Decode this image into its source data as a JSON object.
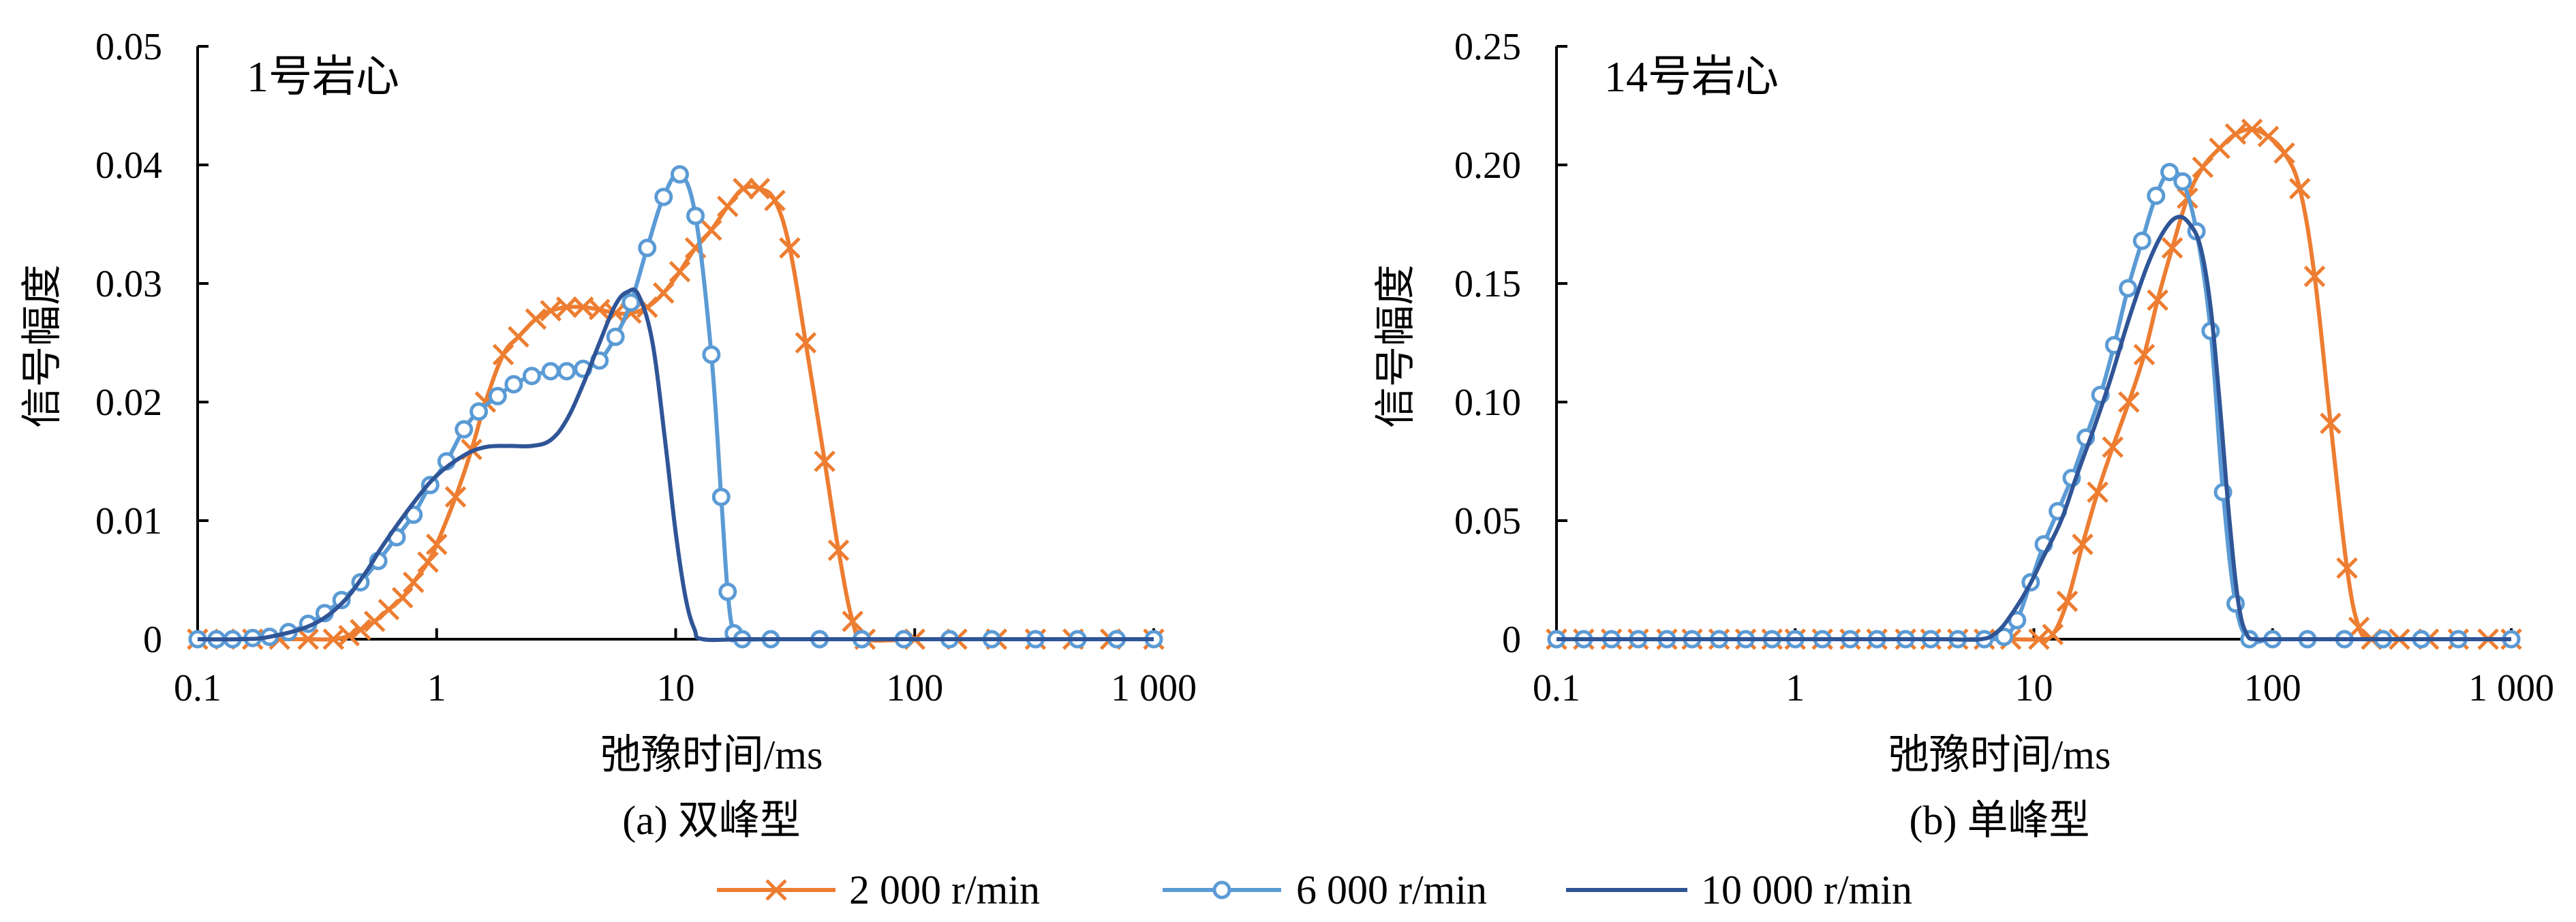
{
  "legend": [
    {
      "series": "s2000",
      "label": "2 000 r/min",
      "color": "#ED7D31",
      "marker": "x"
    },
    {
      "series": "s6000",
      "label": "6 000 r/min",
      "color": "#5B9BD5",
      "marker": "circle"
    },
    {
      "series": "s10000",
      "label": "10 000 r/min",
      "color": "#2F5597",
      "marker": "none"
    }
  ],
  "chart_data": [
    {
      "type": "line",
      "subcaption": "(a) 双峰型",
      "annotation": "1号岩心",
      "xlabel": "弛豫时间/ms",
      "ylabel": "信号幅度",
      "x_scale": "log",
      "xlim": [
        0.1,
        1000
      ],
      "ylim": [
        0,
        0.05
      ],
      "x_ticks": [
        0.1,
        1,
        10,
        100,
        1000
      ],
      "x_tick_labels": [
        "0.1",
        "1",
        "10",
        "100",
        "1 000"
      ],
      "y_ticks": [
        0,
        0.01,
        0.02,
        0.03,
        0.04,
        0.05
      ],
      "y_tick_labels": [
        "0",
        "0.01",
        "0.02",
        "0.03",
        "0.04",
        "0.05"
      ],
      "grid": false,
      "series": [
        {
          "key": "s2000",
          "name": "2 000 r/min",
          "color": "#ED7D31",
          "marker": "x",
          "points": [
            [
              0.1,
              0
            ],
            [
              0.13,
              0
            ],
            [
              0.17,
              0
            ],
            [
              0.22,
              0
            ],
            [
              0.29,
              0
            ],
            [
              0.37,
              0
            ],
            [
              0.43,
              0.0003
            ],
            [
              0.48,
              0.0008
            ],
            [
              0.55,
              0.0015
            ],
            [
              0.63,
              0.0025
            ],
            [
              0.72,
              0.0035
            ],
            [
              0.8,
              0.0048
            ],
            [
              0.92,
              0.0065
            ],
            [
              1.0,
              0.008
            ],
            [
              1.2,
              0.012
            ],
            [
              1.4,
              0.016
            ],
            [
              1.6,
              0.02
            ],
            [
              1.9,
              0.024
            ],
            [
              2.2,
              0.0255
            ],
            [
              2.6,
              0.027
            ],
            [
              3.0,
              0.0277
            ],
            [
              3.5,
              0.028
            ],
            [
              4.1,
              0.028
            ],
            [
              4.8,
              0.0278
            ],
            [
              5.6,
              0.0275
            ],
            [
              6.5,
              0.0275
            ],
            [
              7.6,
              0.028
            ],
            [
              8.9,
              0.0292
            ],
            [
              10.4,
              0.031
            ],
            [
              12.1,
              0.033
            ],
            [
              14.1,
              0.0345
            ],
            [
              16.5,
              0.0365
            ],
            [
              19.2,
              0.038
            ],
            [
              22.4,
              0.038
            ],
            [
              26,
              0.037
            ],
            [
              30,
              0.033
            ],
            [
              35,
              0.025
            ],
            [
              42,
              0.015
            ],
            [
              48,
              0.0075
            ],
            [
              55,
              0.0015
            ],
            [
              62,
              0
            ],
            [
              100,
              0
            ],
            [
              150,
              0
            ],
            [
              220,
              0
            ],
            [
              320,
              0
            ],
            [
              460,
              0
            ],
            [
              660,
              0
            ],
            [
              1000,
              0
            ]
          ]
        },
        {
          "key": "s6000",
          "name": "6 000 r/min",
          "color": "#5B9BD5",
          "marker": "circle",
          "points": [
            [
              0.1,
              0
            ],
            [
              0.12,
              0
            ],
            [
              0.14,
              0
            ],
            [
              0.17,
              0.0001
            ],
            [
              0.2,
              0.0002
            ],
            [
              0.24,
              0.0006
            ],
            [
              0.29,
              0.0013
            ],
            [
              0.34,
              0.0022
            ],
            [
              0.4,
              0.0033
            ],
            [
              0.48,
              0.0048
            ],
            [
              0.57,
              0.0066
            ],
            [
              0.68,
              0.0086
            ],
            [
              0.8,
              0.0105
            ],
            [
              0.94,
              0.013
            ],
            [
              1.1,
              0.015
            ],
            [
              1.3,
              0.0177
            ],
            [
              1.5,
              0.0192
            ],
            [
              1.8,
              0.0205
            ],
            [
              2.1,
              0.0215
            ],
            [
              2.5,
              0.0222
            ],
            [
              3.0,
              0.0226
            ],
            [
              3.5,
              0.0226
            ],
            [
              4.1,
              0.0228
            ],
            [
              4.8,
              0.0235
            ],
            [
              5.6,
              0.0255
            ],
            [
              6.5,
              0.0284
            ],
            [
              7.6,
              0.033
            ],
            [
              8.9,
              0.0373
            ],
            [
              10.4,
              0.0392
            ],
            [
              12.1,
              0.0357
            ],
            [
              14.1,
              0.024
            ],
            [
              15.5,
              0.012
            ],
            [
              16.5,
              0.004
            ],
            [
              17.5,
              0.0005
            ],
            [
              19,
              0
            ],
            [
              25,
              0
            ],
            [
              40,
              0
            ],
            [
              60,
              0
            ],
            [
              90,
              0
            ],
            [
              140,
              0
            ],
            [
              210,
              0
            ],
            [
              320,
              0
            ],
            [
              480,
              0
            ],
            [
              700,
              0
            ],
            [
              1000,
              0
            ]
          ]
        },
        {
          "key": "s10000",
          "name": "10 000 r/min",
          "color": "#2F5597",
          "marker": "none",
          "points": [
            [
              0.1,
              0
            ],
            [
              0.15,
              0
            ],
            [
              0.2,
              0.0002
            ],
            [
              0.3,
              0.0012
            ],
            [
              0.4,
              0.003
            ],
            [
              0.5,
              0.0055
            ],
            [
              0.6,
              0.008
            ],
            [
              0.8,
              0.0115
            ],
            [
              1.0,
              0.0138
            ],
            [
              1.3,
              0.0155
            ],
            [
              1.6,
              0.0162
            ],
            [
              2.0,
              0.0163
            ],
            [
              2.5,
              0.0163
            ],
            [
              3.0,
              0.0168
            ],
            [
              3.5,
              0.0185
            ],
            [
              4.1,
              0.0215
            ],
            [
              4.8,
              0.025
            ],
            [
              5.6,
              0.0282
            ],
            [
              6.3,
              0.0293
            ],
            [
              7.0,
              0.029
            ],
            [
              8.0,
              0.025
            ],
            [
              9.0,
              0.017
            ],
            [
              10.0,
              0.009
            ],
            [
              11.0,
              0.0035
            ],
            [
              12.0,
              0.0008
            ],
            [
              13.0,
              0
            ],
            [
              20,
              0
            ],
            [
              50,
              0
            ],
            [
              100,
              0
            ],
            [
              300,
              0
            ],
            [
              1000,
              0
            ]
          ]
        }
      ]
    },
    {
      "type": "line",
      "subcaption": "(b) 单峰型",
      "annotation": "14号岩心",
      "xlabel": "弛豫时间/ms",
      "ylabel": "信号幅度",
      "x_scale": "log",
      "xlim": [
        0.1,
        1000
      ],
      "ylim": [
        0,
        0.25
      ],
      "x_ticks": [
        0.1,
        1,
        10,
        100,
        1000
      ],
      "x_tick_labels": [
        "0.1",
        "1",
        "10",
        "100",
        "1 000"
      ],
      "y_ticks": [
        0,
        0.05,
        0.1,
        0.15,
        0.2,
        0.25
      ],
      "y_tick_labels": [
        "0",
        "0.05",
        "0.10",
        "0.15",
        "0.20",
        "0.25"
      ],
      "grid": false,
      "series": [
        {
          "key": "s2000",
          "name": "2 000 r/min",
          "color": "#ED7D31",
          "marker": "x",
          "points": [
            [
              0.1,
              0
            ],
            [
              0.13,
              0
            ],
            [
              0.17,
              0
            ],
            [
              0.22,
              0
            ],
            [
              0.29,
              0
            ],
            [
              0.37,
              0
            ],
            [
              0.48,
              0
            ],
            [
              0.62,
              0
            ],
            [
              0.8,
              0
            ],
            [
              1.0,
              0
            ],
            [
              1.3,
              0
            ],
            [
              1.7,
              0
            ],
            [
              2.2,
              0
            ],
            [
              2.9,
              0
            ],
            [
              3.7,
              0
            ],
            [
              4.8,
              0
            ],
            [
              6.2,
              0
            ],
            [
              8,
              0
            ],
            [
              10.5,
              0
            ],
            [
              12,
              0.002
            ],
            [
              13.8,
              0.016
            ],
            [
              16,
              0.04
            ],
            [
              18.5,
              0.062
            ],
            [
              21.4,
              0.081
            ],
            [
              25,
              0.1
            ],
            [
              29,
              0.12
            ],
            [
              33,
              0.143
            ],
            [
              38,
              0.165
            ],
            [
              44,
              0.186
            ],
            [
              51,
              0.199
            ],
            [
              60,
              0.207
            ],
            [
              70,
              0.213
            ],
            [
              82,
              0.215
            ],
            [
              96,
              0.212
            ],
            [
              112,
              0.205
            ],
            [
              130,
              0.19
            ],
            [
              150,
              0.153
            ],
            [
              175,
              0.091
            ],
            [
              205,
              0.03
            ],
            [
              230,
              0.005
            ],
            [
              260,
              0
            ],
            [
              340,
              0
            ],
            [
              450,
              0
            ],
            [
              600,
              0
            ],
            [
              800,
              0
            ],
            [
              1000,
              0
            ]
          ]
        },
        {
          "key": "s6000",
          "name": "6 000 r/min",
          "color": "#5B9BD5",
          "marker": "circle",
          "points": [
            [
              0.1,
              0
            ],
            [
              0.13,
              0
            ],
            [
              0.17,
              0
            ],
            [
              0.22,
              0
            ],
            [
              0.29,
              0
            ],
            [
              0.37,
              0
            ],
            [
              0.48,
              0
            ],
            [
              0.62,
              0
            ],
            [
              0.8,
              0
            ],
            [
              1.0,
              0
            ],
            [
              1.3,
              0
            ],
            [
              1.7,
              0
            ],
            [
              2.2,
              0
            ],
            [
              2.9,
              0
            ],
            [
              3.7,
              0
            ],
            [
              4.8,
              0
            ],
            [
              6.2,
              0
            ],
            [
              7.5,
              0.001
            ],
            [
              8.5,
              0.008
            ],
            [
              9.7,
              0.024
            ],
            [
              11,
              0.04
            ],
            [
              12.6,
              0.054
            ],
            [
              14.4,
              0.068
            ],
            [
              16.5,
              0.085
            ],
            [
              19,
              0.103
            ],
            [
              21.7,
              0.124
            ],
            [
              24.8,
              0.148
            ],
            [
              28.4,
              0.168
            ],
            [
              32.5,
              0.187
            ],
            [
              37,
              0.197
            ],
            [
              42,
              0.193
            ],
            [
              48,
              0.172
            ],
            [
              55,
              0.13
            ],
            [
              62,
              0.062
            ],
            [
              70,
              0.015
            ],
            [
              80,
              0
            ],
            [
              100,
              0
            ],
            [
              140,
              0
            ],
            [
              200,
              0
            ],
            [
              290,
              0
            ],
            [
              420,
              0
            ],
            [
              600,
              0
            ],
            [
              1000,
              0
            ]
          ]
        },
        {
          "key": "s10000",
          "name": "10 000 r/min",
          "color": "#2F5597",
          "marker": "none",
          "points": [
            [
              0.1,
              0
            ],
            [
              0.5,
              0
            ],
            [
              1,
              0
            ],
            [
              2,
              0
            ],
            [
              4,
              0
            ],
            [
              6,
              0
            ],
            [
              7,
              0.003
            ],
            [
              8,
              0.01
            ],
            [
              9.5,
              0.022
            ],
            [
              11,
              0.035
            ],
            [
              13,
              0.05
            ],
            [
              15,
              0.068
            ],
            [
              18,
              0.09
            ],
            [
              21,
              0.11
            ],
            [
              25,
              0.135
            ],
            [
              30,
              0.158
            ],
            [
              35,
              0.172
            ],
            [
              40,
              0.178
            ],
            [
              45,
              0.175
            ],
            [
              50,
              0.165
            ],
            [
              55,
              0.14
            ],
            [
              60,
              0.1
            ],
            [
              66,
              0.05
            ],
            [
              72,
              0.015
            ],
            [
              78,
              0.002
            ],
            [
              85,
              0
            ],
            [
              100,
              0
            ],
            [
              200,
              0
            ],
            [
              500,
              0
            ],
            [
              1000,
              0
            ]
          ]
        }
      ]
    }
  ]
}
